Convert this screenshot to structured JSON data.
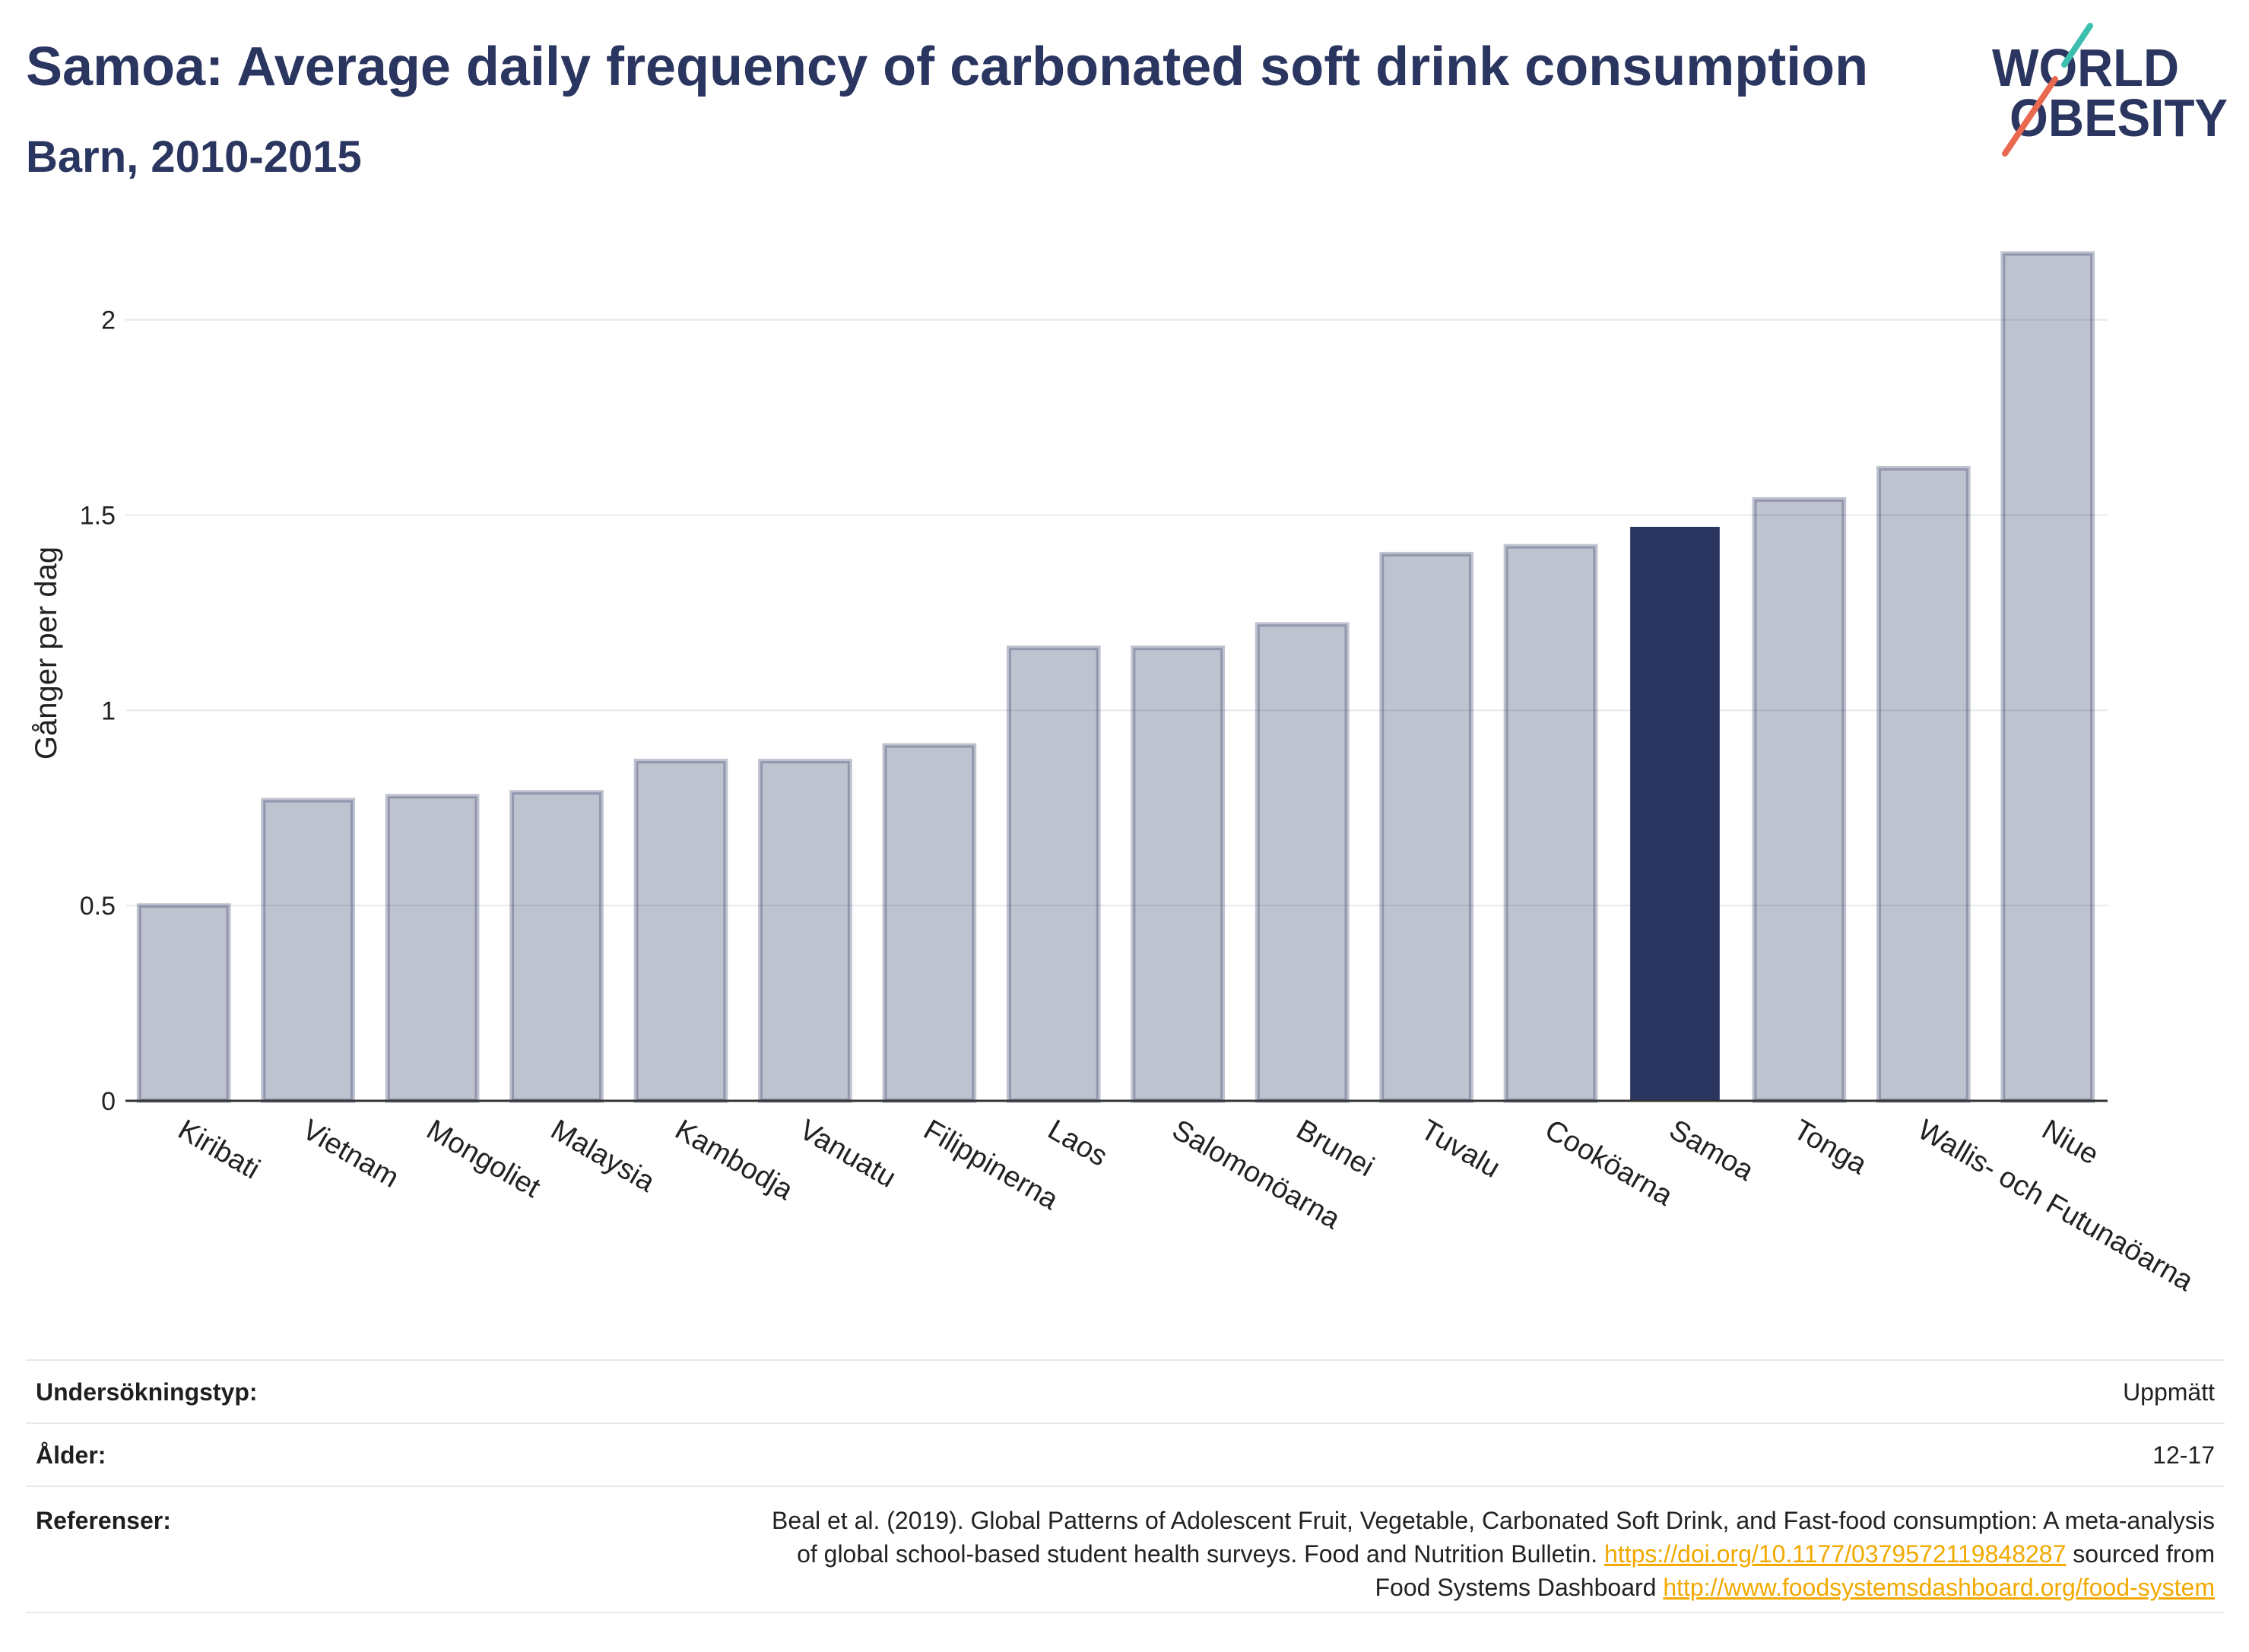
{
  "chart_data": {
    "type": "bar",
    "title": "Samoa: Average daily frequency of carbonated soft drink consumption",
    "subtitle": "Barn, 2010-2015",
    "xlabel": "",
    "ylabel": "Gånger per dag",
    "categories": [
      "Kiribati",
      "Vietnam",
      "Mongoliet",
      "Malaysia",
      "Kambodja",
      "Vanuatu",
      "Filippinerna",
      "Laos",
      "Salomonöarna",
      "Brunei",
      "Tuvalu",
      "Cooköarna",
      "Samoa",
      "Tonga",
      "Wallis- och Futunaöarna",
      "Niue"
    ],
    "values": [
      0.5,
      0.77,
      0.78,
      0.79,
      0.87,
      0.87,
      0.91,
      1.16,
      1.16,
      1.22,
      1.4,
      1.42,
      1.47,
      1.54,
      1.62,
      2.17
    ],
    "highlight": "Samoa",
    "ylim": [
      0,
      2.2
    ],
    "yticks": [
      0,
      0.5,
      1,
      1.5,
      2
    ],
    "ytick_labels": [
      "0",
      "0.5",
      "1",
      "1.5",
      "2"
    ],
    "grid": true,
    "legend": "none",
    "colors": {
      "bar": "rgba(42,53,96,0.3)",
      "bar_border": "rgba(42,53,96,0.3)",
      "highlight": "#2a3560",
      "gridline": "#e7e8ee",
      "axis": "#333333"
    }
  },
  "logo": {
    "line1": "WORLD",
    "line2": "OBESITY",
    "colors": {
      "text": "#2a3560",
      "teal": "#3cbfae",
      "coral": "#e8694f"
    }
  },
  "info_table": {
    "survey_type": {
      "label": "Undersökningstyp:",
      "value": "Uppmätt"
    },
    "age": {
      "label": "Ålder:",
      "value": "12-17"
    },
    "references": {
      "label": "Referenser:",
      "line1": "Beal et al. (2019). Global Patterns of Adolescent Fruit, Vegetable, Carbonated Soft Drink, and Fast-food consumption: A meta-analysis",
      "line2_text": "of global school-based student health surveys. Food and Nutrition Bulletin.",
      "line2_link": "https://doi.org/10.1177/0379572119848287",
      "line2_tail": "sourced from",
      "line3_text": "Food Systems Dashboard",
      "line3_link": "http://www.foodsystemsdashboard.org/food-system"
    },
    "link_color": "#f2a900"
  }
}
